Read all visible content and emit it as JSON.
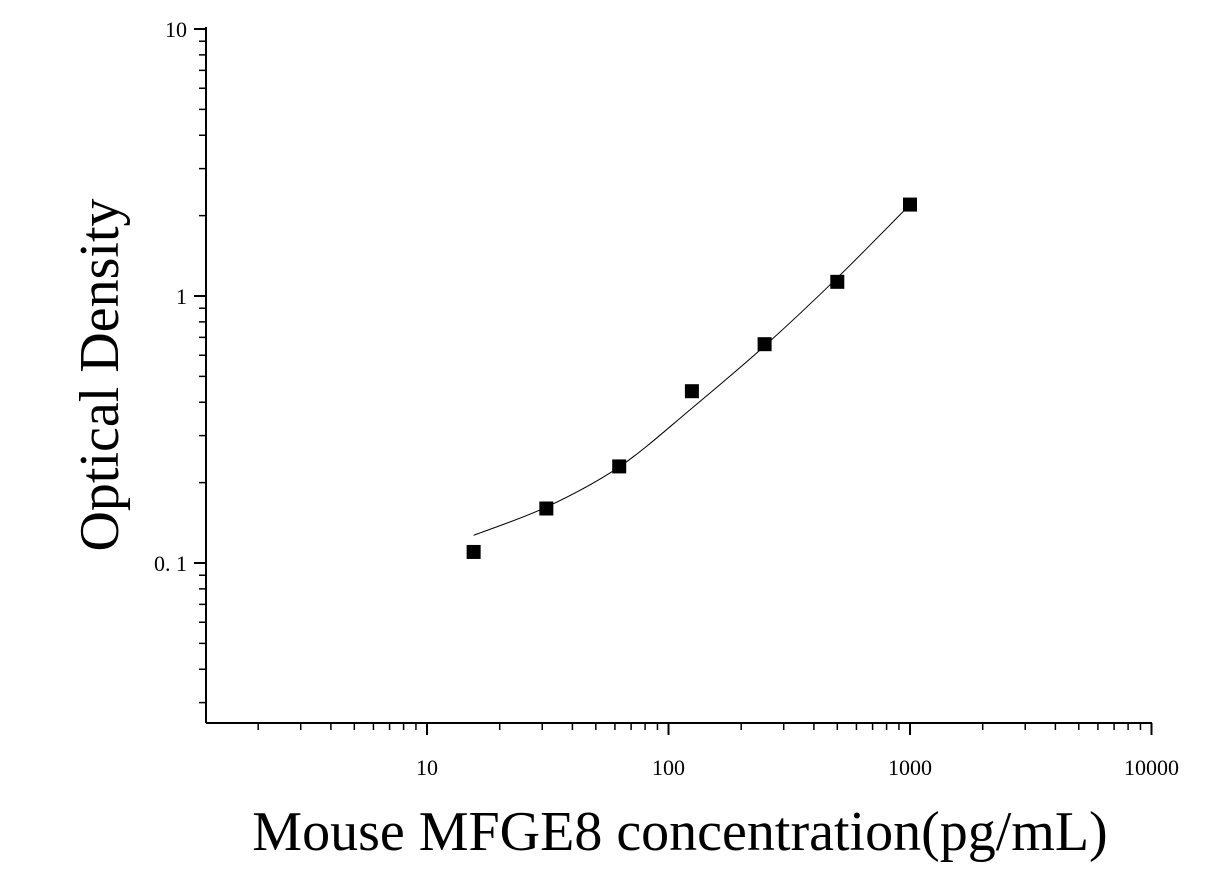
{
  "chart_data": {
    "type": "scatter",
    "title": "",
    "xlabel": "Mouse MFGE8 concentration(pg/mL)",
    "ylabel": "Optical Density",
    "x_scale": "log",
    "y_scale": "log",
    "xlim": [
      1.2,
      10000
    ],
    "ylim": [
      0.025,
      10
    ],
    "x_ticks": [
      10,
      100,
      1000,
      10000
    ],
    "x_tick_labels": [
      "10",
      "100",
      "1000",
      "10000"
    ],
    "y_ticks": [
      0.1,
      1,
      10
    ],
    "y_tick_labels": [
      "0. 1",
      "1",
      "10"
    ],
    "grid": false,
    "legend": "none",
    "series": [
      {
        "marker": "square",
        "color": "#000000",
        "points": [
          {
            "x": 15.6,
            "y": 0.11
          },
          {
            "x": 31.2,
            "y": 0.16
          },
          {
            "x": 62.5,
            "y": 0.23
          },
          {
            "x": 125,
            "y": 0.44
          },
          {
            "x": 250,
            "y": 0.66
          },
          {
            "x": 500,
            "y": 1.13
          },
          {
            "x": 1000,
            "y": 2.2
          }
        ]
      }
    ],
    "fit_curve": {
      "color": "#000000",
      "points": [
        {
          "x": 15.6,
          "y": 0.127
        },
        {
          "x": 31.2,
          "y": 0.162
        },
        {
          "x": 62.5,
          "y": 0.229
        },
        {
          "x": 125,
          "y": 0.38
        },
        {
          "x": 250,
          "y": 0.65
        },
        {
          "x": 500,
          "y": 1.17
        },
        {
          "x": 1000,
          "y": 2.2
        }
      ]
    }
  }
}
